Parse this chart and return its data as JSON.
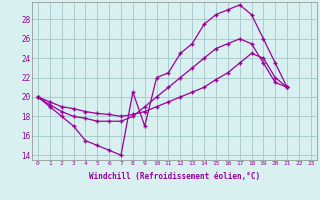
{
  "xlabel": "Windchill (Refroidissement éolien,°C)",
  "xlim": [
    -0.5,
    23.5
  ],
  "ylim": [
    13.5,
    29.8
  ],
  "xticks": [
    0,
    1,
    2,
    3,
    4,
    5,
    6,
    7,
    8,
    9,
    10,
    11,
    12,
    13,
    14,
    15,
    16,
    17,
    18,
    19,
    20,
    21,
    22,
    23
  ],
  "yticks": [
    14,
    16,
    18,
    20,
    22,
    24,
    26,
    28
  ],
  "line_color": "#990099",
  "bg_color": "#d8f0f0",
  "grid_color": "#aacccc",
  "line1_x": [
    0,
    1,
    2,
    3,
    4,
    5,
    6,
    7,
    8,
    9,
    10,
    11,
    12,
    13,
    14,
    15,
    16,
    17,
    18,
    19,
    20,
    21
  ],
  "line1_y": [
    20.0,
    19.0,
    18.0,
    17.0,
    15.5,
    15.0,
    14.5,
    14.0,
    20.5,
    17.0,
    22.0,
    22.5,
    24.5,
    25.5,
    27.5,
    28.5,
    29.0,
    29.5,
    28.5,
    26.0,
    23.5,
    21.0
  ],
  "line2_x": [
    0,
    1,
    2,
    3,
    4,
    5,
    6,
    7,
    8,
    9,
    10,
    11,
    12,
    13,
    14,
    15,
    16,
    17,
    18,
    19,
    20,
    21
  ],
  "line2_y": [
    20.0,
    19.2,
    18.5,
    18.0,
    17.8,
    17.5,
    17.5,
    17.5,
    18.0,
    19.0,
    20.0,
    21.0,
    22.0,
    23.0,
    24.0,
    25.0,
    25.5,
    26.0,
    25.5,
    23.5,
    21.5,
    21.0
  ],
  "line3_x": [
    0,
    1,
    2,
    3,
    4,
    5,
    6,
    7,
    8,
    9,
    10,
    11,
    12,
    13,
    14,
    15,
    16,
    17,
    18,
    19,
    20,
    21
  ],
  "line3_y": [
    20.0,
    19.5,
    19.0,
    18.8,
    18.5,
    18.3,
    18.2,
    18.0,
    18.2,
    18.5,
    19.0,
    19.5,
    20.0,
    20.5,
    21.0,
    21.8,
    22.5,
    23.5,
    24.5,
    24.0,
    22.0,
    21.0
  ]
}
